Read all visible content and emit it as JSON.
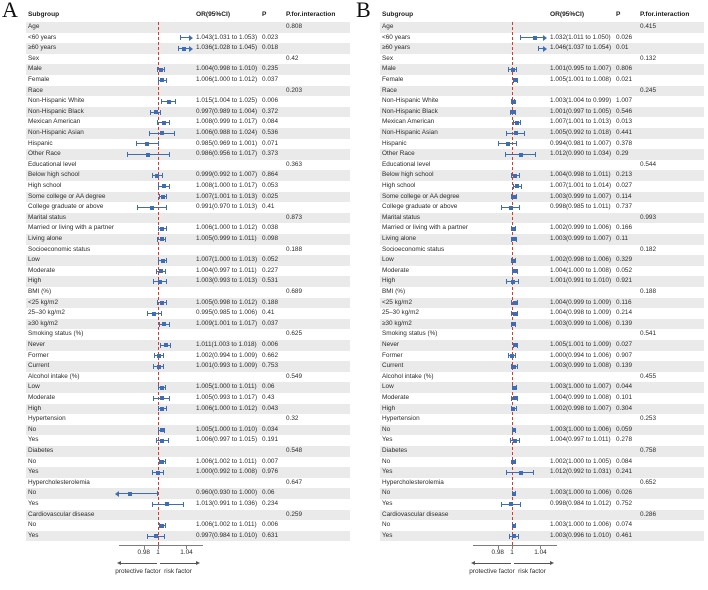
{
  "colors": {
    "marker": "#3f6db5",
    "refline": "#d93a2b",
    "row_alt": "#eaeaea",
    "axis": "#7d7d7d"
  },
  "chart_data": [
    {
      "type": "forest",
      "panel_label": "A",
      "columns": {
        "subgroup": "Subgroup",
        "or": "OR(95%CI)",
        "p": "P",
        "pint": "P.for.interaction"
      },
      "axis": {
        "ticks": [
          "0.98",
          "1",
          "1.04"
        ],
        "tick_values": [
          0.98,
          1,
          1.04
        ],
        "ref_value": 1,
        "left_label": "protective factor",
        "right_label": "risk factor"
      },
      "rows": [
        {
          "subgroup": "Age",
          "pint": "0.808"
        },
        {
          "subgroup": "<60 years",
          "est": 1.043,
          "lo": 1.031,
          "hi": 1.053,
          "or": "1.043(1.031 to 1.053)",
          "p": "0.023"
        },
        {
          "subgroup": "≥60 years",
          "est": 1.036,
          "lo": 1.028,
          "hi": 1.045,
          "or": "1.036(1.028 to 1.045)",
          "p": "0.018"
        },
        {
          "subgroup": "Sex",
          "pint": "0.42"
        },
        {
          "subgroup": "Male",
          "est": 1.004,
          "lo": 0.998,
          "hi": 1.01,
          "or": "1.004(0.998 to 1.010)",
          "p": "0.235"
        },
        {
          "subgroup": "Female",
          "est": 1.006,
          "lo": 1.0,
          "hi": 1.012,
          "or": "1.006(1.000 to 1.012)",
          "p": "0.037"
        },
        {
          "subgroup": "Race",
          "pint": "0.203"
        },
        {
          "subgroup": "Non-Hispanic White",
          "est": 1.015,
          "lo": 1.004,
          "hi": 1.025,
          "or": "1.015(1.004 to 1.025)",
          "p": "0.006"
        },
        {
          "subgroup": "Non-Hispanic Black",
          "est": 0.997,
          "lo": 0.989,
          "hi": 1.004,
          "or": "0.997(0.989 to 1.004)",
          "p": "0.372"
        },
        {
          "subgroup": "Mexican American",
          "est": 1.008,
          "lo": 0.999,
          "hi": 1.017,
          "or": "1.008(0.999 to 1.017)",
          "p": "0.084"
        },
        {
          "subgroup": "Non-Hispanic Asian",
          "est": 1.006,
          "lo": 0.988,
          "hi": 1.024,
          "or": "1.006(0.988 to 1.024)",
          "p": "0.536"
        },
        {
          "subgroup": "Hispanic",
          "est": 0.985,
          "lo": 0.969,
          "hi": 1.001,
          "or": "0.985(0.969 to 1.001)",
          "p": "0.071"
        },
        {
          "subgroup": "Other Race",
          "est": 0.986,
          "lo": 0.956,
          "hi": 1.017,
          "or": "0.986(0.956 to 1.017)",
          "p": "0.373"
        },
        {
          "subgroup": "Educational level",
          "pint": "0.363"
        },
        {
          "subgroup": "Below high school",
          "est": 0.999,
          "lo": 0.992,
          "hi": 1.007,
          "or": "0.999(0.992 to 1.007)",
          "p": "0.864"
        },
        {
          "subgroup": "High school",
          "est": 1.008,
          "lo": 1.0,
          "hi": 1.017,
          "or": "1.008(1.000 to 1.017)",
          "p": "0.053"
        },
        {
          "subgroup": "Some college or AA degree",
          "est": 1.007,
          "lo": 1.001,
          "hi": 1.013,
          "or": "1.007(1.001 to 1.013)",
          "p": "0.025"
        },
        {
          "subgroup": "College graduate or above",
          "est": 0.991,
          "lo": 0.97,
          "hi": 1.013,
          "or": "0.991(0.970 to 1.013)",
          "p": "0.41"
        },
        {
          "subgroup": "Marital status",
          "pint": "0.873"
        },
        {
          "subgroup": "Married or living with a partner",
          "est": 1.006,
          "lo": 1.0,
          "hi": 1.012,
          "or": "1.006(1.000 to 1.012)",
          "p": "0.038"
        },
        {
          "subgroup": "Living alone",
          "est": 1.005,
          "lo": 0.999,
          "hi": 1.011,
          "or": "1.005(0.999 to 1.011)",
          "p": "0.098"
        },
        {
          "subgroup": "Socioeconomic status",
          "pint": "0.188"
        },
        {
          "subgroup": "Low",
          "est": 1.007,
          "lo": 1.0,
          "hi": 1.013,
          "or": "1.007(1.000 to 1.013)",
          "p": "0.052"
        },
        {
          "subgroup": "Moderate",
          "est": 1.004,
          "lo": 0.997,
          "hi": 1.011,
          "or": "1.004(0.997 to 1.011)",
          "p": "0.227"
        },
        {
          "subgroup": "High",
          "est": 1.003,
          "lo": 0.993,
          "hi": 1.013,
          "or": "1.003(0.993 to 1.013)",
          "p": "0.531"
        },
        {
          "subgroup": "BMI (%)",
          "pint": "0.689"
        },
        {
          "subgroup": "<25 kg/m2",
          "est": 1.005,
          "lo": 0.998,
          "hi": 1.012,
          "or": "1.005(0.998 to 1.012)",
          "p": "0.188"
        },
        {
          "subgroup": "25–30 kg/m2",
          "est": 0.995,
          "lo": 0.985,
          "hi": 1.006,
          "or": "0.995(0.985 to 1.006)",
          "p": "0.41"
        },
        {
          "subgroup": "≥30 kg/m2",
          "est": 1.009,
          "lo": 1.001,
          "hi": 1.017,
          "or": "1.009(1.001 to 1.017)",
          "p": "0.037"
        },
        {
          "subgroup": "Smoking status (%)",
          "pint": "0.625"
        },
        {
          "subgroup": "Never",
          "est": 1.011,
          "lo": 1.003,
          "hi": 1.018,
          "or": "1.011(1.003 to 1.018)",
          "p": "0.006"
        },
        {
          "subgroup": "Former",
          "est": 1.002,
          "lo": 0.994,
          "hi": 1.009,
          "or": "1.002(0.994 to 1.009)",
          "p": "0.662"
        },
        {
          "subgroup": "Current",
          "est": 1.001,
          "lo": 0.993,
          "hi": 1.009,
          "or": "1.001(0.993 to 1.009)",
          "p": "0.753"
        },
        {
          "subgroup": "Alcohol intake (%)",
          "pint": "0.549"
        },
        {
          "subgroup": "Low",
          "est": 1.005,
          "lo": 1.0,
          "hi": 1.011,
          "or": "1.005(1.000 to 1.011)",
          "p": "0.06"
        },
        {
          "subgroup": "Moderate",
          "est": 1.005,
          "lo": 0.993,
          "hi": 1.017,
          "or": "1.005(0.993 to 1.017)",
          "p": "0.43"
        },
        {
          "subgroup": "High",
          "est": 1.006,
          "lo": 1.0,
          "hi": 1.012,
          "or": "1.006(1.000 to 1.012)",
          "p": "0.043"
        },
        {
          "subgroup": "Hypertension",
          "pint": "0.32"
        },
        {
          "subgroup": "No",
          "est": 1.005,
          "lo": 1.0,
          "hi": 1.01,
          "or": "1.005(1.000 to 1.010)",
          "p": "0.034"
        },
        {
          "subgroup": "Yes",
          "est": 1.006,
          "lo": 0.997,
          "hi": 1.015,
          "or": "1.006(0.997 to 1.015)",
          "p": "0.191"
        },
        {
          "subgroup": "Diabetes",
          "pint": "0.548"
        },
        {
          "subgroup": "No",
          "est": 1.006,
          "lo": 1.002,
          "hi": 1.011,
          "or": "1.006(1.002 to 1.011)",
          "p": "0.007"
        },
        {
          "subgroup": "Yes",
          "est": 1.0,
          "lo": 0.992,
          "hi": 1.008,
          "or": "1.000(0.992 to 1.008)",
          "p": "0.976"
        },
        {
          "subgroup": "Hypercholesterolemia",
          "pint": "0.647"
        },
        {
          "subgroup": "No",
          "est": 0.96,
          "lo": 0.93,
          "hi": 1.0,
          "or": "0.960(0.930 to 1.000)",
          "p": "0.06"
        },
        {
          "subgroup": "Yes",
          "est": 1.013,
          "lo": 0.991,
          "hi": 1.036,
          "or": "1.013(0.991 to 1.036)",
          "p": "0.234"
        },
        {
          "subgroup": "Cardiovascular disease",
          "pint": "0.259"
        },
        {
          "subgroup": "No",
          "est": 1.006,
          "lo": 1.002,
          "hi": 1.011,
          "or": "1.006(1.002 to 1.011)",
          "p": "0.006"
        },
        {
          "subgroup": "Yes",
          "est": 0.997,
          "lo": 0.984,
          "hi": 1.01,
          "or": "0.997(0.984 to 1.010)",
          "p": "0.631"
        }
      ]
    },
    {
      "type": "forest",
      "panel_label": "B",
      "columns": {
        "subgroup": "Subgroup",
        "or": "OR(95%CI)",
        "p": "P",
        "pint": "P.for.interaction"
      },
      "axis": {
        "ticks": [
          "0.98",
          "1",
          "1.04"
        ],
        "tick_values": [
          0.98,
          1,
          1.04
        ],
        "ref_value": 1,
        "left_label": "protective factor",
        "right_label": "risk factor"
      },
      "rows": [
        {
          "subgroup": "Age",
          "pint": "0.415"
        },
        {
          "subgroup": "<60 years",
          "est": 1.032,
          "lo": 1.011,
          "hi": 1.05,
          "or": "1.032(1.011 to 1.050)",
          "p": "0.026"
        },
        {
          "subgroup": "≥60 years",
          "est": 1.046,
          "lo": 1.037,
          "hi": 1.054,
          "or": "1.046(1.037 to 1.054)",
          "p": "0.01"
        },
        {
          "subgroup": "Sex",
          "pint": "0.132"
        },
        {
          "subgroup": "Male",
          "est": 1.001,
          "lo": 0.995,
          "hi": 1.007,
          "or": "1.001(0.995 to 1.007)",
          "p": "0.806"
        },
        {
          "subgroup": "Female",
          "est": 1.005,
          "lo": 1.001,
          "hi": 1.008,
          "or": "1.005(1.001 to 1.008)",
          "p": "0.021"
        },
        {
          "subgroup": "Race",
          "pint": "0.245"
        },
        {
          "subgroup": "Non-Hispanic White",
          "est": 1.003,
          "lo": 0.999,
          "hi": 1.004,
          "or": "1.003(1.004 to 0.999)",
          "p": "1.007"
        },
        {
          "subgroup": "Non-Hispanic Black",
          "est": 1.001,
          "lo": 0.997,
          "hi": 1.005,
          "or": "1.001(0.997 to 1.005)",
          "p": "0.546"
        },
        {
          "subgroup": "Mexican American",
          "est": 1.007,
          "lo": 1.001,
          "hi": 1.013,
          "or": "1.007(1.001 to 1.013)",
          "p": "0.013"
        },
        {
          "subgroup": "Non-Hispanic Asian",
          "est": 1.005,
          "lo": 0.992,
          "hi": 1.018,
          "or": "1.005(0.992 to 1.018)",
          "p": "0.441"
        },
        {
          "subgroup": "Hispanic",
          "est": 0.994,
          "lo": 0.981,
          "hi": 1.007,
          "or": "0.994(0.981 to 1.007)",
          "p": "0.378"
        },
        {
          "subgroup": "Other Race",
          "est": 1.012,
          "lo": 0.99,
          "hi": 1.034,
          "or": "1.012(0.990 to 1.034)",
          "p": "0.29"
        },
        {
          "subgroup": "Educational level",
          "pint": "0.544"
        },
        {
          "subgroup": "Below high school",
          "est": 1.004,
          "lo": 0.998,
          "hi": 1.011,
          "or": "1.004(0.998 to 1.011)",
          "p": "0.213"
        },
        {
          "subgroup": "High school",
          "est": 1.007,
          "lo": 1.001,
          "hi": 1.014,
          "or": "1.007(1.001 to 1.014)",
          "p": "0.027"
        },
        {
          "subgroup": "Some college or AA degree",
          "est": 1.003,
          "lo": 0.999,
          "hi": 1.007,
          "or": "1.003(0.999 to 1.007)",
          "p": "0.114"
        },
        {
          "subgroup": "College graduate or above",
          "est": 0.998,
          "lo": 0.985,
          "hi": 1.011,
          "or": "0.998(0.985 to 1.011)",
          "p": "0.737"
        },
        {
          "subgroup": "Marital status",
          "pint": "0.993"
        },
        {
          "subgroup": "Married or living with a partner",
          "est": 1.002,
          "lo": 0.999,
          "hi": 1.006,
          "or": "1.002(0.999 to 1.006)",
          "p": "0.166"
        },
        {
          "subgroup": "Living alone",
          "est": 1.003,
          "lo": 0.999,
          "hi": 1.007,
          "or": "1.003(0.999 to 1.007)",
          "p": "0.11"
        },
        {
          "subgroup": "Socioeconomic status",
          "pint": "0.182"
        },
        {
          "subgroup": "Low",
          "est": 1.002,
          "lo": 0.998,
          "hi": 1.006,
          "or": "1.002(0.998 to 1.006)",
          "p": "0.329"
        },
        {
          "subgroup": "Moderate",
          "est": 1.004,
          "lo": 1.0,
          "hi": 1.008,
          "or": "1.004(1.000 to 1.008)",
          "p": "0.052"
        },
        {
          "subgroup": "High",
          "est": 1.001,
          "lo": 0.991,
          "hi": 1.01,
          "or": "1.001(0.991 to 1.010)",
          "p": "0.921"
        },
        {
          "subgroup": "BMI (%)",
          "pint": "0.188"
        },
        {
          "subgroup": "<25 kg/m2",
          "est": 1.004,
          "lo": 0.999,
          "hi": 1.009,
          "or": "1.004(0.999 to 1.009)",
          "p": "0.116"
        },
        {
          "subgroup": "25–30 kg/m2",
          "est": 1.004,
          "lo": 0.998,
          "hi": 1.009,
          "or": "1.004(0.998 to 1.009)",
          "p": "0.214"
        },
        {
          "subgroup": "≥30 kg/m2",
          "est": 1.003,
          "lo": 0.999,
          "hi": 1.006,
          "or": "1.003(0.999 to 1.006)",
          "p": "0.139"
        },
        {
          "subgroup": "Smoking status (%)",
          "pint": "0.541"
        },
        {
          "subgroup": "Never",
          "est": 1.005,
          "lo": 1.001,
          "hi": 1.009,
          "or": "1.005(1.001 to 1.009)",
          "p": "0.027"
        },
        {
          "subgroup": "Former",
          "est": 1.0,
          "lo": 0.994,
          "hi": 1.006,
          "or": "1.000(0.994 to 1.006)",
          "p": "0.907"
        },
        {
          "subgroup": "Current",
          "est": 1.003,
          "lo": 0.999,
          "hi": 1.008,
          "or": "1.003(0.999 to 1.008)",
          "p": "0.139"
        },
        {
          "subgroup": "Alcohol intake (%)",
          "pint": "0.455"
        },
        {
          "subgroup": "Low",
          "est": 1.003,
          "lo": 1.0,
          "hi": 1.007,
          "or": "1.003(1.000 to 1.007)",
          "p": "0.044"
        },
        {
          "subgroup": "Moderate",
          "est": 1.004,
          "lo": 0.999,
          "hi": 1.008,
          "or": "1.004(0.999 to 1.008)",
          "p": "0.101"
        },
        {
          "subgroup": "High",
          "est": 1.002,
          "lo": 0.998,
          "hi": 1.007,
          "or": "1.002(0.998 to 1.007)",
          "p": "0.304"
        },
        {
          "subgroup": "Hypertension",
          "pint": "0.253"
        },
        {
          "subgroup": "No",
          "est": 1.003,
          "lo": 1.0,
          "hi": 1.006,
          "or": "1.003(1.000 to 1.006)",
          "p": "0.059"
        },
        {
          "subgroup": "Yes",
          "est": 1.004,
          "lo": 0.997,
          "hi": 1.011,
          "or": "1.004(0.997 to 1.011)",
          "p": "0.278"
        },
        {
          "subgroup": "Diabetes",
          "pint": "0.758"
        },
        {
          "subgroup": "No",
          "est": 1.002,
          "lo": 1.0,
          "hi": 1.005,
          "or": "1.002(1.000 to 1.005)",
          "p": "0.084"
        },
        {
          "subgroup": "Yes",
          "est": 1.012,
          "lo": 0.992,
          "hi": 1.031,
          "or": "1.012(0.992 to 1.031)",
          "p": "0.241"
        },
        {
          "subgroup": "Hypercholesterolemia",
          "pint": "0.652"
        },
        {
          "subgroup": "No",
          "est": 1.003,
          "lo": 1.0,
          "hi": 1.006,
          "or": "1.003(1.000 to 1.006)",
          "p": "0.026"
        },
        {
          "subgroup": "Yes",
          "est": 0.998,
          "lo": 0.984,
          "hi": 1.012,
          "or": "0.998(0.984 to 1.012)",
          "p": "0.752"
        },
        {
          "subgroup": "Cardiovascular disease",
          "pint": "0.286"
        },
        {
          "subgroup": "No",
          "est": 1.003,
          "lo": 1.0,
          "hi": 1.006,
          "or": "1.003(1.000 to 1.006)",
          "p": "0.074"
        },
        {
          "subgroup": "Yes",
          "est": 1.003,
          "lo": 0.996,
          "hi": 1.01,
          "or": "1.003(0.996 to 1.010)",
          "p": "0.461"
        }
      ]
    }
  ]
}
